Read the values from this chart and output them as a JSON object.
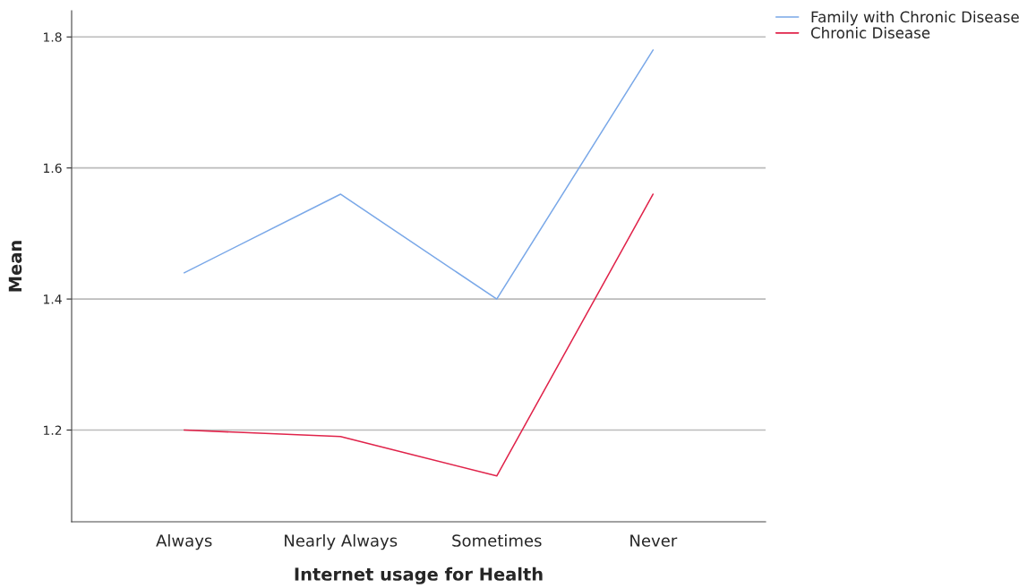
{
  "chart_data": {
    "type": "line",
    "xlabel": "Internet usage for Health",
    "ylabel": "Mean",
    "categories": [
      "Always",
      "Nearly Always",
      "Sometimes",
      "Never"
    ],
    "series": [
      {
        "name": "Family with Chronic Disease",
        "color": "#7aa8e8",
        "values": [
          1.44,
          1.56,
          1.4,
          1.78
        ]
      },
      {
        "name": "Chronic Disease",
        "color": "#e0234a",
        "values": [
          1.2,
          1.19,
          1.13,
          1.56
        ]
      }
    ],
    "ylim": [
      1.06,
      1.84
    ],
    "yticks": [
      1.2,
      1.4,
      1.6,
      1.8
    ],
    "grid": "y",
    "legend": "top right",
    "marker": "none",
    "line_style": "solid"
  }
}
